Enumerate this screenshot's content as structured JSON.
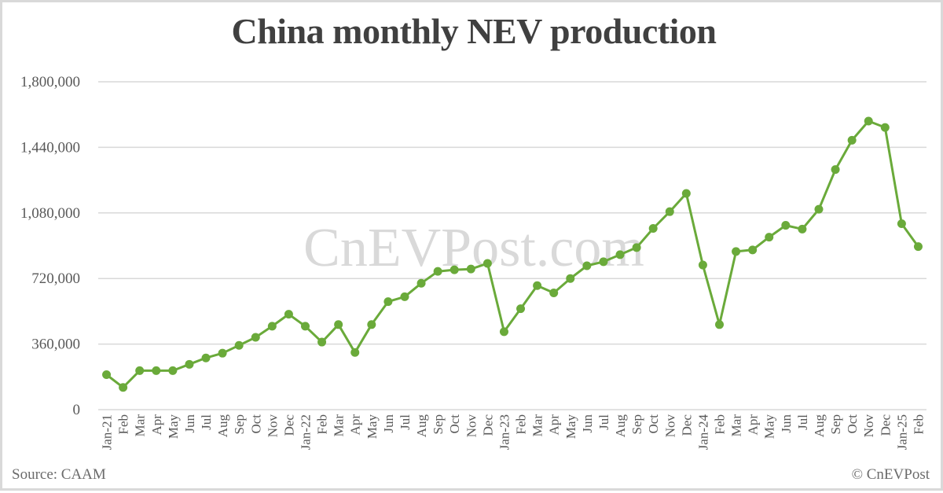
{
  "title": "China monthly NEV production",
  "watermark": "CnEVPost.com",
  "footer": {
    "source": "Source: CAAM",
    "copyright": "© CnEVPost"
  },
  "colors": {
    "line": "#6aaa3a",
    "gridline": "#d9d9d9",
    "title": "#404040",
    "axis_text": "#595959"
  },
  "chart_data": {
    "type": "line",
    "title": "China monthly NEV production",
    "xlabel": "",
    "ylabel": "",
    "ylim": [
      0,
      1800000
    ],
    "yticks": [
      0,
      360000,
      720000,
      1080000,
      1440000,
      1800000
    ],
    "ytick_labels": [
      "0",
      "360,000",
      "720,000",
      "1,080,000",
      "1,440,000",
      "1,800,000"
    ],
    "grid": true,
    "legend": null,
    "categories": [
      "Jan-21",
      "Feb",
      "Mar",
      "Apr",
      "May",
      "Jun",
      "Jul",
      "Aug",
      "Sep",
      "Oct",
      "Nov",
      "Dec",
      "Jan-22",
      "Feb",
      "Mar",
      "Apr",
      "May",
      "Jun",
      "Jul",
      "Aug",
      "Sep",
      "Oct",
      "Nov",
      "Dec",
      "Jan-23",
      "Feb",
      "Mar",
      "Apr",
      "May",
      "Jun",
      "Jul",
      "Aug",
      "Sep",
      "Oct",
      "Nov",
      "Dec",
      "Jan-24",
      "Feb",
      "Mar",
      "Apr",
      "May",
      "Jun",
      "Jul",
      "Aug",
      "Sep",
      "Oct",
      "Nov",
      "Dec",
      "Jan-25",
      "Feb"
    ],
    "series": [
      {
        "name": "NEV production",
        "color": "#6aaa3a",
        "values": [
          192000,
          122000,
          214000,
          214000,
          214000,
          249000,
          284000,
          310000,
          353000,
          397000,
          458000,
          524000,
          458000,
          371000,
          467000,
          314000,
          467000,
          593000,
          620000,
          694000,
          759000,
          768000,
          772000,
          803000,
          428000,
          554000,
          681000,
          641000,
          720000,
          790000,
          812000,
          851000,
          890000,
          995000,
          1087000,
          1187000,
          794000,
          467000,
          868000,
          877000,
          947000,
          1012000,
          991000,
          1100000,
          1318000,
          1479000,
          1584000,
          1549000,
          1021000,
          895000
        ]
      }
    ]
  }
}
